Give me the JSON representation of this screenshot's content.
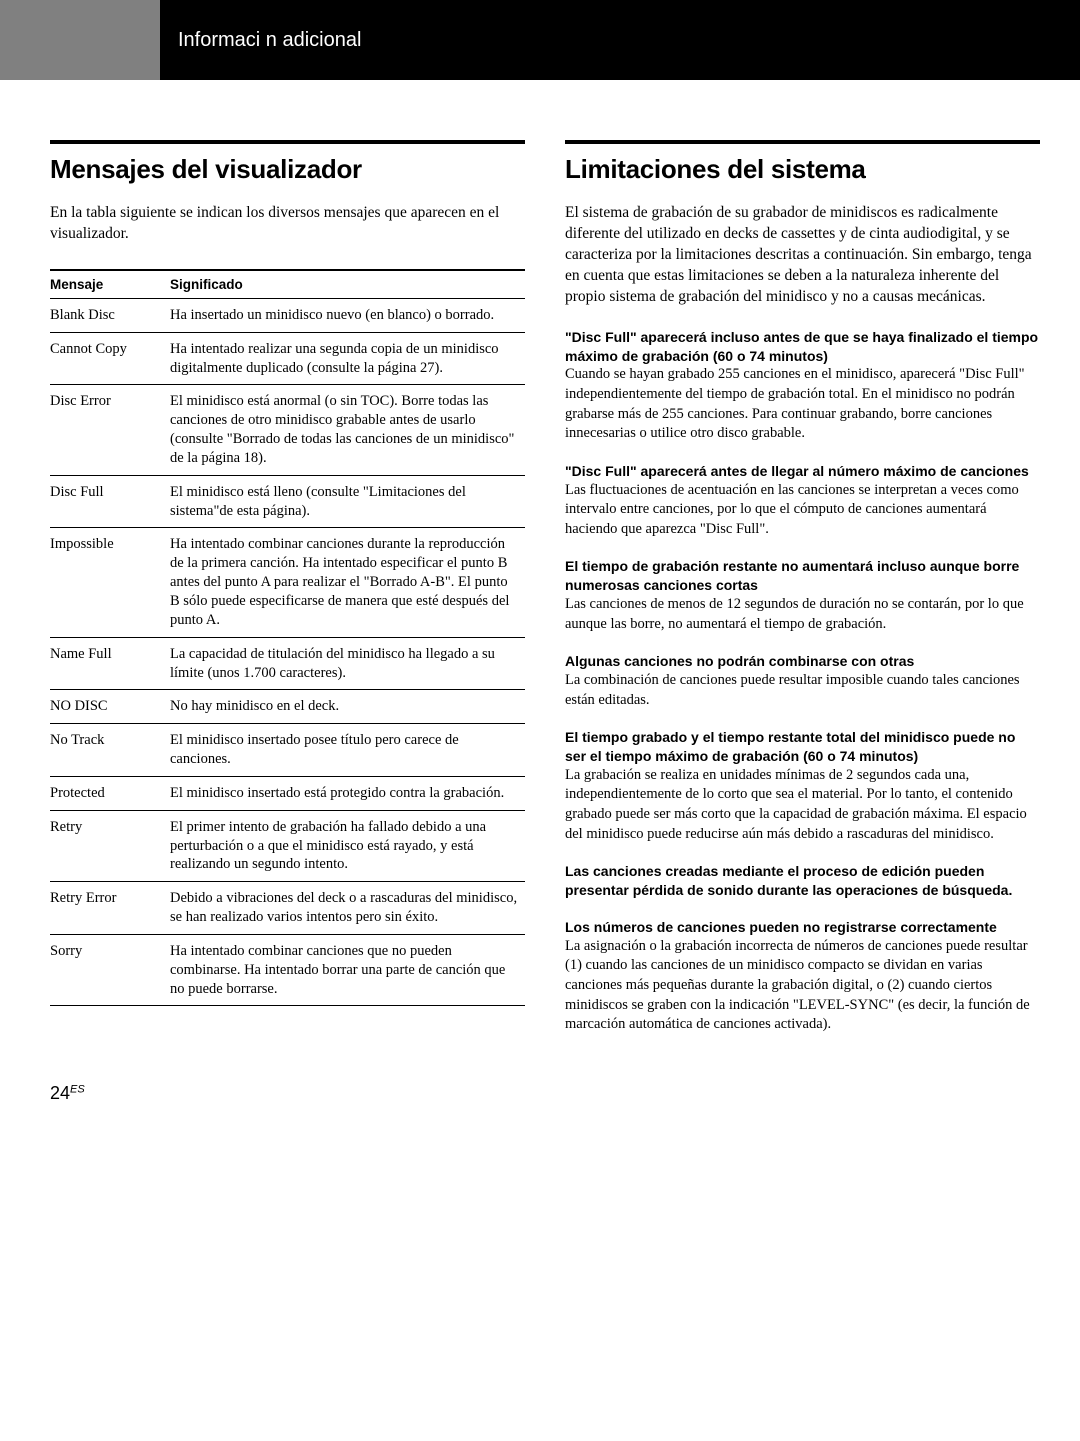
{
  "header": {
    "title": "Informaci n adicional"
  },
  "left": {
    "heading": "Mensajes del visualizador",
    "intro": "En la tabla siguiente se indican los diversos mensajes que aparecen en el visualizador.",
    "tableHeaders": {
      "message": "Mensaje",
      "meaning": "Significado"
    },
    "messages": [
      {
        "name": "Blank Disc",
        "meaning": "Ha insertado un minidisco nuevo (en blanco) o borrado."
      },
      {
        "name": "Cannot Copy",
        "meaning": "Ha intentado realizar una segunda copia de un minidisco digitalmente duplicado (consulte la página 27)."
      },
      {
        "name": "Disc Error",
        "meaning": "El minidisco está anormal (o sin TOC). Borre todas las canciones de otro minidisco grabable antes de usarlo (consulte \"Borrado de todas las canciones de un minidisco\" de la página 18)."
      },
      {
        "name": "Disc Full",
        "meaning": "El minidisco está lleno (consulte \"Limitaciones del sistema\"de esta página)."
      },
      {
        "name": "Impossible",
        "meaning": "Ha intentado combinar canciones durante la reproducción de la primera canción. Ha intentado especificar el punto B antes del punto A para realizar el \"Borrado A-B\". El punto B sólo puede especificarse de manera que esté después del punto A."
      },
      {
        "name": "Name Full",
        "meaning": "La capacidad de titulación del minidisco ha llegado a su límite (unos 1.700 caracteres)."
      },
      {
        "name": "NO DISC",
        "meaning": "No hay minidisco en el deck."
      },
      {
        "name": "No Track",
        "meaning": "El minidisco insertado posee título pero carece de canciones."
      },
      {
        "name": "Protected",
        "meaning": "El minidisco insertado está protegido contra la grabación."
      },
      {
        "name": "Retry",
        "meaning": "El primer intento de grabación ha fallado debido a una perturbación o a que el minidisco está rayado, y está realizando un segundo intento."
      },
      {
        "name": "Retry Error",
        "meaning": "Debido a vibraciones del deck o a rascaduras del minidisco, se han realizado varios intentos pero sin éxito."
      },
      {
        "name": "Sorry",
        "meaning": "Ha intentado combinar canciones que no pueden combinarse.\nHa intentado borrar una parte de canción que no puede borrarse."
      }
    ]
  },
  "right": {
    "heading": "Limitaciones del sistema",
    "intro": "El sistema de grabación de su grabador de minidiscos es radicalmente diferente del utilizado en decks de cassettes y de cinta audiodigital, y se caracteriza por la limitaciones descritas a continuación.  Sin embargo, tenga en cuenta que estas limitaciones se deben a la naturaleza inherente del propio sistema de grabación del minidisco y no a causas mecánicas.",
    "limits": [
      {
        "heading": "\"Disc Full\" aparecerá incluso antes de que se haya finalizado el tiempo máximo de grabación (60 o 74 minutos)",
        "body": "Cuando se hayan grabado 255 canciones en el minidisco, aparecerá \"Disc Full\" independientemente del tiempo de grabación total.  En el minidisco no podrán grabarse más de 255 canciones.  Para continuar grabando, borre canciones innecesarias o utilice otro disco grabable."
      },
      {
        "heading": "\"Disc Full\" aparecerá antes de llegar al número máximo de canciones",
        "body": "Las fluctuaciones de acentuación en las canciones se interpretan a veces como intervalo entre canciones, por lo que el cómputo de canciones aumentará haciendo que aparezca \"Disc Full\"."
      },
      {
        "heading": "El tiempo de grabación restante no aumentará incluso aunque borre numerosas canciones cortas",
        "body": "Las canciones de menos de 12 segundos de duración no se contarán, por lo que aunque las borre, no aumentará el tiempo de grabación."
      },
      {
        "heading": "Algunas canciones no podrán combinarse con otras",
        "body": "La combinación de canciones puede resultar imposible cuando tales canciones están editadas."
      },
      {
        "heading": "El tiempo grabado y el tiempo restante total del minidisco puede no ser el tiempo máximo de grabación (60 o 74 minutos)",
        "body": "La grabación se realiza en unidades mínimas de 2 segundos cada una, independientemente de lo corto que sea el material.  Por lo tanto, el contenido grabado puede ser más corto que la capacidad de grabación máxima.  El espacio del minidisco puede reducirse aún más debido a rascaduras del minidisco."
      },
      {
        "heading": "Las canciones creadas mediante el proceso de edición pueden presentar pérdida de sonido durante las operaciones de búsqueda.",
        "body": ""
      },
      {
        "heading": "Los números de canciones pueden no registrarse correctamente",
        "body": "La asignación o la grabación incorrecta de números de canciones puede resultar (1) cuando las canciones de un minidisco compacto se dividan en varias canciones más pequeñas durante la grabación digital, o (2) cuando ciertos minidiscos se graben con la indicación \"LEVEL-SYNC\" (es decir, la función de marcación automática de canciones activada)."
      }
    ]
  },
  "footer": {
    "pageNumber": "24",
    "suffix": "ES"
  }
}
